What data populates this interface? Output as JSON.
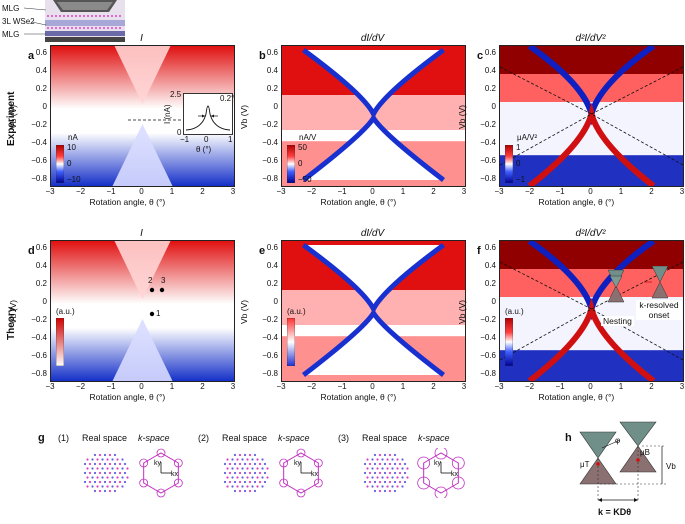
{
  "schematic": {
    "mlg_top": "MLG",
    "wse2": "3L WSe2",
    "mlg_bottom": "MLG"
  },
  "rows": {
    "experiment": "Experiment",
    "theory": "Theory"
  },
  "panels": [
    {
      "letter": "a",
      "title": "I",
      "cbar_unit": "nA",
      "cbar_top": "10",
      "cbar_mid": "0",
      "cbar_bot": "−10"
    },
    {
      "letter": "b",
      "title": "dI/dV",
      "cbar_unit": "nA/V",
      "cbar_top": "50",
      "cbar_mid": "0",
      "cbar_bot": "−50"
    },
    {
      "letter": "c",
      "title": "d²I/dV²",
      "cbar_unit": "μA/V²",
      "cbar_top": "1",
      "cbar_mid": "0",
      "cbar_bot": "−1"
    },
    {
      "letter": "d",
      "title": "I",
      "cbar_unit": "(a.u.)"
    },
    {
      "letter": "e",
      "title": "dI/dV",
      "cbar_unit": "(a.u.)"
    },
    {
      "letter": "f",
      "title": "d²I/dV²",
      "cbar_unit": "(a.u.)"
    }
  ],
  "axes": {
    "xlabel": "Rotation angle, θ (°)",
    "ylabel": "Vb (V)",
    "xticks": [
      "−3",
      "−2",
      "−1",
      "0",
      "1",
      "2",
      "3"
    ],
    "yticks": [
      "0.6",
      "0.4",
      "0.2",
      "0",
      "−0.2",
      "−0.4",
      "−0.6",
      "−0.8"
    ]
  },
  "inset_a": {
    "ylabel": "I (nA)",
    "tick_y": "2.5",
    "tick_y0": "0",
    "angle": "0.2°",
    "xlabel": "θ (°)",
    "xticks": [
      "−1",
      "0",
      "1"
    ]
  },
  "panel_d_points": [
    "1",
    "2",
    "3"
  ],
  "panel_f_labels": {
    "nesting": "Nesting",
    "onset": "k-resolved onset"
  },
  "panel_g": {
    "letter": "g",
    "items": [
      {
        "num": "(1)",
        "real": "Real space",
        "k": "k-space"
      },
      {
        "num": "(2)",
        "real": "Real space",
        "k": "k-space"
      },
      {
        "num": "(3)",
        "real": "Real space",
        "k": "k-space"
      }
    ],
    "kx": "kx",
    "ky": "ky"
  },
  "panel_h": {
    "letter": "h",
    "muT": "μT",
    "muB": "μB",
    "phi": "φ",
    "Vb": "Vb",
    "k": "k = KDθ"
  },
  "colors": {
    "red": "#d01010",
    "blue": "#1020c0",
    "white": "#ffffff",
    "pink": "#e040c0"
  }
}
